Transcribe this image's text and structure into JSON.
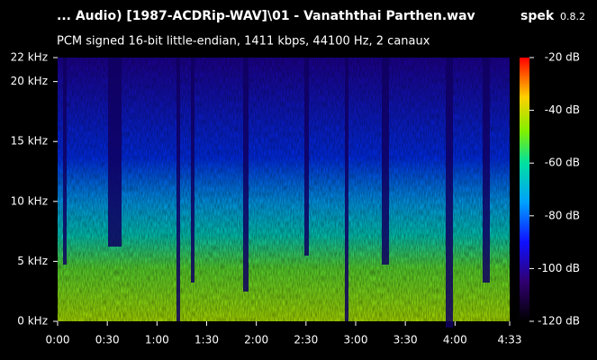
{
  "chart_data": {
    "type": "spectrogram",
    "title": "... Audio) [1987-ACDRip-WAV]\\01 - Vanaththai Parthen.wav",
    "subtitle": "PCM signed 16-bit little-endian, 1411 kbps, 44100 Hz, 2 canaux",
    "app_name": "spek",
    "app_version": "0.8.2",
    "xlim": [
      0,
      273
    ],
    "xticks": [
      {
        "value": 0,
        "label": "0:00"
      },
      {
        "value": 30,
        "label": "0:30"
      },
      {
        "value": 60,
        "label": "1:00"
      },
      {
        "value": 90,
        "label": "1:30"
      },
      {
        "value": 120,
        "label": "2:00"
      },
      {
        "value": 150,
        "label": "2:30"
      },
      {
        "value": 180,
        "label": "3:00"
      },
      {
        "value": 210,
        "label": "3:30"
      },
      {
        "value": 240,
        "label": "4:00"
      },
      {
        "value": 273,
        "label": "4:33"
      }
    ],
    "ylim": [
      0,
      22
    ],
    "yticks": [
      {
        "value": 0,
        "label": "0 kHz"
      },
      {
        "value": 5,
        "label": "5 kHz"
      },
      {
        "value": 10,
        "label": "10 kHz"
      },
      {
        "value": 15,
        "label": "15 kHz"
      },
      {
        "value": 20,
        "label": "20 kHz"
      },
      {
        "value": 22,
        "label": "22 kHz"
      }
    ],
    "clim": [
      -120,
      -20
    ],
    "cticks": [
      {
        "value": -20,
        "label": "-20 dB"
      },
      {
        "value": -40,
        "label": "-40 dB"
      },
      {
        "value": -60,
        "label": "-60 dB"
      },
      {
        "value": -80,
        "label": "-80 dB"
      },
      {
        "value": -100,
        "label": "-100 dB"
      },
      {
        "value": -120,
        "label": "-120 dB"
      }
    ]
  }
}
